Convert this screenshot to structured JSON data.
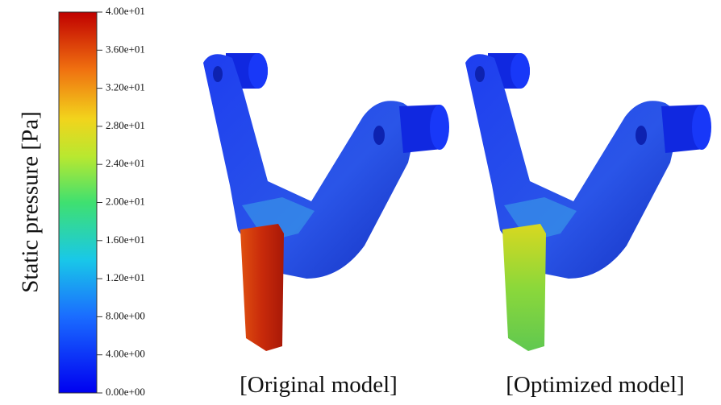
{
  "colorbar": {
    "title": "Static pressure [Pa]",
    "limits": [
      0,
      40
    ],
    "ticks": [
      {
        "value": 0,
        "label": "0.00e+00"
      },
      {
        "value": 4,
        "label": "4.00e+00"
      },
      {
        "value": 8,
        "label": "8.00e+00"
      },
      {
        "value": 12,
        "label": "1.20e+01"
      },
      {
        "value": 16,
        "label": "1.60e+01"
      },
      {
        "value": 20,
        "label": "2.00e+01"
      },
      {
        "value": 24,
        "label": "2.40e+01"
      },
      {
        "value": 28,
        "label": "2.80e+01"
      },
      {
        "value": 32,
        "label": "3.20e+01"
      },
      {
        "value": 36,
        "label": "3.60e+01"
      },
      {
        "value": 40,
        "label": "4.00e+01"
      }
    ]
  },
  "panels": [
    {
      "label": "[Original model]"
    },
    {
      "label": "[Optimized model]"
    }
  ]
}
